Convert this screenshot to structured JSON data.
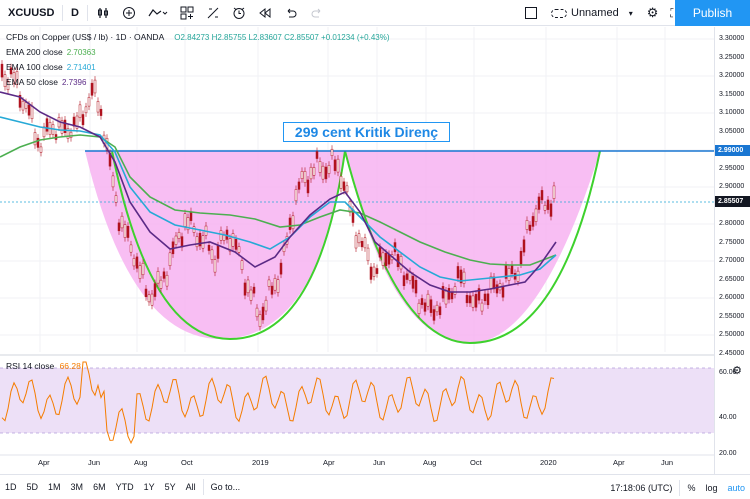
{
  "toolbar": {
    "symbol": "XCUUSD",
    "interval": "D",
    "layout_name": "Unnamed",
    "publish_label": "Publish",
    "icons": [
      "bar-style-icon",
      "indicators-icon",
      "add-icon",
      "compare-icon",
      "templates-icon",
      "alert-icon",
      "replay-icon",
      "undo-icon",
      "redo-icon",
      "layout-icon",
      "settings-icon",
      "fullscreen-icon",
      "camera-icon"
    ]
  },
  "legend": {
    "title": "CFDs on Copper (US$ / lb) · 1D · OANDA",
    "ohlc": "O2.84273 H2.85755 L2.83607 C2.85507 +0.01234 (+0.43%)",
    "ema200_label": "EMA 200 close",
    "ema200_value": "2.70363",
    "ema100_label": "EMA 100 close",
    "ema100_value": "2.71401",
    "ema50_label": "EMA 50 close",
    "ema50_value": "2.7396",
    "rsi_label": "RSI 14 close",
    "rsi_value": "66.28"
  },
  "annotation": "299 cent Kritik Direnç",
  "price_axis": {
    "labels": [
      "3.30000",
      "3.25000",
      "3.20000",
      "3.15000",
      "3.10000",
      "3.05000",
      "3.00000",
      "2.95000",
      "2.90000",
      "2.85000",
      "2.80000",
      "2.75000",
      "2.70000",
      "2.65000",
      "2.60000",
      "2.55000",
      "2.50000",
      "2.45000"
    ],
    "current_price": "2.85507",
    "resistance_price": "2.99000",
    "rsi_labels": [
      "60.00",
      "40.00",
      "20.00"
    ]
  },
  "date_axis": [
    "Apr",
    "Jun",
    "Aug",
    "Oct",
    "2019",
    "Apr",
    "Jun",
    "Aug",
    "Oct",
    "2020",
    "Apr",
    "Jun"
  ],
  "bottom": {
    "ranges": [
      "1D",
      "5D",
      "1M",
      "3M",
      "6M",
      "YTD",
      "1Y",
      "5Y",
      "All"
    ],
    "goto": "Go to...",
    "time": "17:18:06 (UTC)",
    "percent": "%",
    "log": "log",
    "auto": "auto"
  },
  "colors": {
    "ema200": "#4caf50",
    "ema100": "#26a9d6",
    "ema50": "#5b2a86",
    "candles": "#b0131f",
    "fill": "#f7b3f1",
    "curve": "#3ed12d",
    "resistance": "#1976d2",
    "rsi": "#f57c00",
    "rsi_band": "#ede0f7",
    "accent": "#2196f3"
  }
}
